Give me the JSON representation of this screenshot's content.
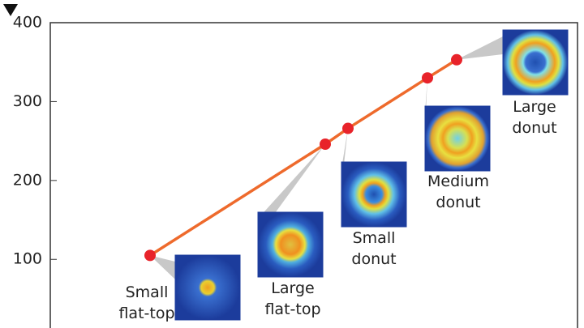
{
  "chart_data": {
    "type": "line",
    "categories": [
      "Small flat-top",
      "Large flat-top",
      "Small donut",
      "Medium donut",
      "Large donut"
    ],
    "series": [
      {
        "color": "#ee6a2c",
        "marker_color": "#e8232a",
        "values": [
          105,
          246,
          266,
          330,
          353
        ]
      }
    ],
    "ylim": [
      13,
      400
    ],
    "yticks": [
      100,
      200,
      300,
      400
    ]
  }
}
